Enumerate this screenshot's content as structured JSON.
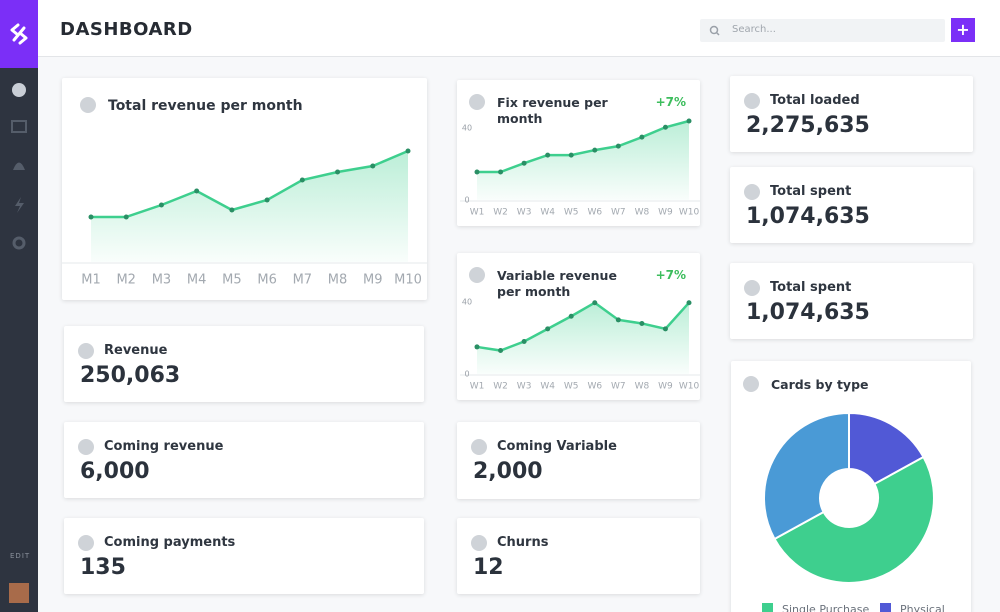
{
  "header": {
    "title": "DASHBOARD",
    "search_placeholder": "Search...",
    "add_button": "+"
  },
  "sidebar": {
    "edit_label": "EDIT"
  },
  "stats": [
    {
      "title": "Revenue",
      "value": "250,063"
    },
    {
      "title": "Coming revenue",
      "value": "6,000"
    },
    {
      "title": "Coming payments",
      "value": "135"
    },
    {
      "title": "Coming Variable",
      "value": "2,000"
    },
    {
      "title": "Churns",
      "value": "12"
    },
    {
      "title": "Total loaded",
      "value": "2,275,635"
    },
    {
      "title": "Total spent",
      "value": "1,074,635"
    },
    {
      "title": "Total spent",
      "value": "1,074,635"
    }
  ],
  "chart_data": [
    {
      "type": "line",
      "title": "Total revenue per month",
      "categories": [
        "M1",
        "M2",
        "M3",
        "M4",
        "M5",
        "M6",
        "M7",
        "M8",
        "M9",
        "M10"
      ],
      "values": [
        45,
        45,
        57,
        71,
        52,
        62,
        82,
        90,
        96,
        111
      ],
      "color": "#3ecf8e",
      "ylim": [
        0,
        130
      ]
    },
    {
      "type": "line",
      "title": "Fix revenue per month",
      "change": "+7%",
      "categories": [
        "W1",
        "W2",
        "W3",
        "W4",
        "W5",
        "W6",
        "W7",
        "W8",
        "W9",
        "W10"
      ],
      "values": [
        15.6,
        15.6,
        20.5,
        25,
        25,
        27.8,
        30,
        35,
        40.5,
        44
      ],
      "color": "#3ecf8e",
      "ylim": [
        0,
        44
      ],
      "yticks": [
        0,
        40
      ]
    },
    {
      "type": "line",
      "title": "Variable revenue per month",
      "change": "+7%",
      "categories": [
        "W1",
        "W2",
        "W3",
        "W4",
        "W5",
        "W6",
        "W7",
        "W8",
        "W9",
        "W10"
      ],
      "values": [
        15,
        13,
        18,
        25,
        32,
        39.5,
        30,
        28,
        25,
        39.5
      ],
      "color": "#3ecf8e",
      "ylim": [
        0,
        41
      ],
      "yticks": [
        0,
        40
      ]
    },
    {
      "type": "pie",
      "title": "Cards by type",
      "categories": [
        "Physical",
        "Single Purchase",
        null
      ],
      "values": [
        17,
        50,
        33
      ],
      "colors": [
        "#5159d6",
        "#3ecf8e",
        "#4a9ad6"
      ]
    }
  ]
}
